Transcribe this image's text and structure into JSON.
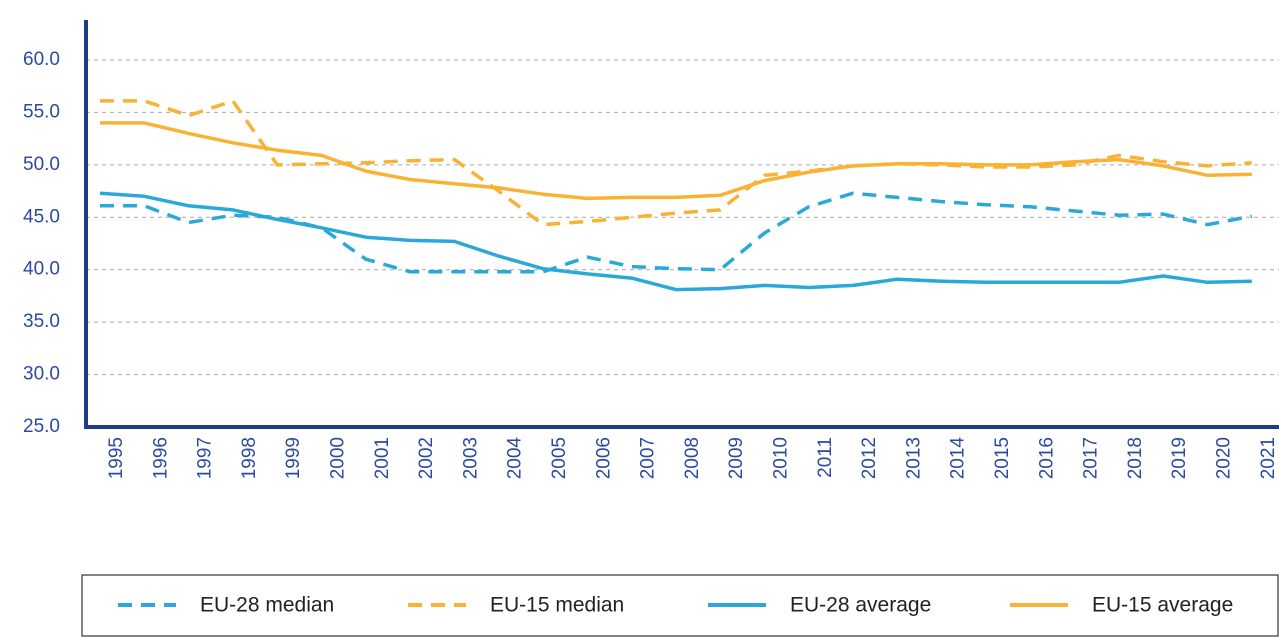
{
  "chart_data": {
    "type": "line",
    "categories": [
      "1995",
      "1996",
      "1997",
      "1998",
      "1999",
      "2000",
      "2001",
      "2002",
      "2003",
      "2004",
      "2005",
      "2006",
      "2007",
      "2008",
      "2009",
      "2010",
      "2011",
      "2012",
      "2013",
      "2014",
      "2015",
      "2016",
      "2017",
      "2018",
      "2019",
      "2020",
      "2021"
    ],
    "series": [
      {
        "name": "EU-28 median",
        "color": "#2aa9d9",
        "dashed": true,
        "values": [
          46.1,
          46.1,
          44.5,
          45.2,
          45.0,
          44.0,
          41.0,
          39.8,
          39.8,
          39.8,
          39.8,
          41.2,
          40.3,
          40.1,
          40.0,
          43.5,
          46.0,
          47.3,
          46.9,
          46.5,
          46.2,
          46.0,
          45.6,
          45.2,
          45.3,
          44.3,
          45.1
        ]
      },
      {
        "name": "EU-15 median",
        "color": "#f9b233",
        "dashed": true,
        "values": [
          56.1,
          56.1,
          54.7,
          56.1,
          50.0,
          50.1,
          50.2,
          50.4,
          50.5,
          47.5,
          44.3,
          44.6,
          45.0,
          45.4,
          45.7,
          49.0,
          49.4,
          49.9,
          50.1,
          50.0,
          49.8,
          49.8,
          50.0,
          50.9,
          50.3,
          49.9,
          50.2
        ]
      },
      {
        "name": "EU-28 average",
        "color": "#2aa9d9",
        "dashed": false,
        "values": [
          47.3,
          47.0,
          46.1,
          45.7,
          44.8,
          44.0,
          43.1,
          42.8,
          42.7,
          41.3,
          40.1,
          39.6,
          39.2,
          38.1,
          38.2,
          38.5,
          38.3,
          38.5,
          39.1,
          38.9,
          38.8,
          38.8,
          38.8,
          38.8,
          39.4,
          38.8,
          38.9
        ]
      },
      {
        "name": "EU-15 average",
        "color": "#f9b233",
        "dashed": false,
        "values": [
          54.0,
          54.0,
          53.0,
          52.1,
          51.4,
          50.9,
          49.4,
          48.6,
          48.2,
          47.8,
          47.2,
          46.8,
          46.9,
          46.9,
          47.1,
          48.5,
          49.3,
          49.9,
          50.1,
          50.1,
          50.0,
          50.0,
          50.3,
          50.5,
          49.9,
          49.0,
          49.1
        ]
      }
    ],
    "ylim": [
      25,
      60
    ],
    "yticks": [
      {
        "value": 25,
        "label": "25.0"
      },
      {
        "value": 30,
        "label": "30.0"
      },
      {
        "value": 35,
        "label": "35.0"
      },
      {
        "value": 40,
        "label": "40.0"
      },
      {
        "value": 45,
        "label": "45.0"
      },
      {
        "value": 50,
        "label": "50.0"
      },
      {
        "value": 55,
        "label": "55.0"
      },
      {
        "value": 60,
        "label": "60.0"
      }
    ],
    "grid": true,
    "legend": "bottom"
  }
}
